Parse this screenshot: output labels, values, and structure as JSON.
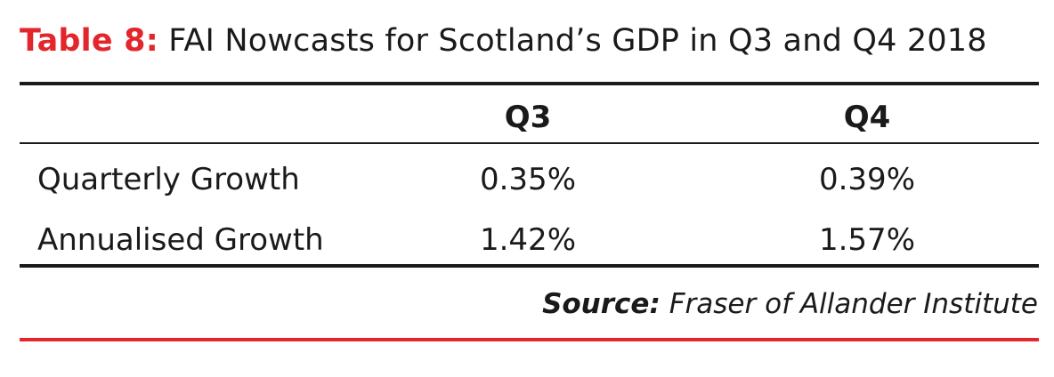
{
  "title": {
    "label": "Table 8:",
    "text": "FAI Nowcasts for Scotland’s GDP in Q3 and Q4 2018"
  },
  "table": {
    "columns": [
      "",
      "Q3",
      "Q4"
    ],
    "rows": [
      {
        "label": "Quarterly Growth",
        "q3": "0.35%",
        "q4": "0.39%"
      },
      {
        "label": "Annualised Growth",
        "q3": "1.42%",
        "q4": "1.57%"
      }
    ]
  },
  "source": {
    "label": "Source:",
    "text": "Fraser of Allander Institute"
  },
  "colors": {
    "accent": "#e3262b",
    "text": "#1a1a1a"
  }
}
